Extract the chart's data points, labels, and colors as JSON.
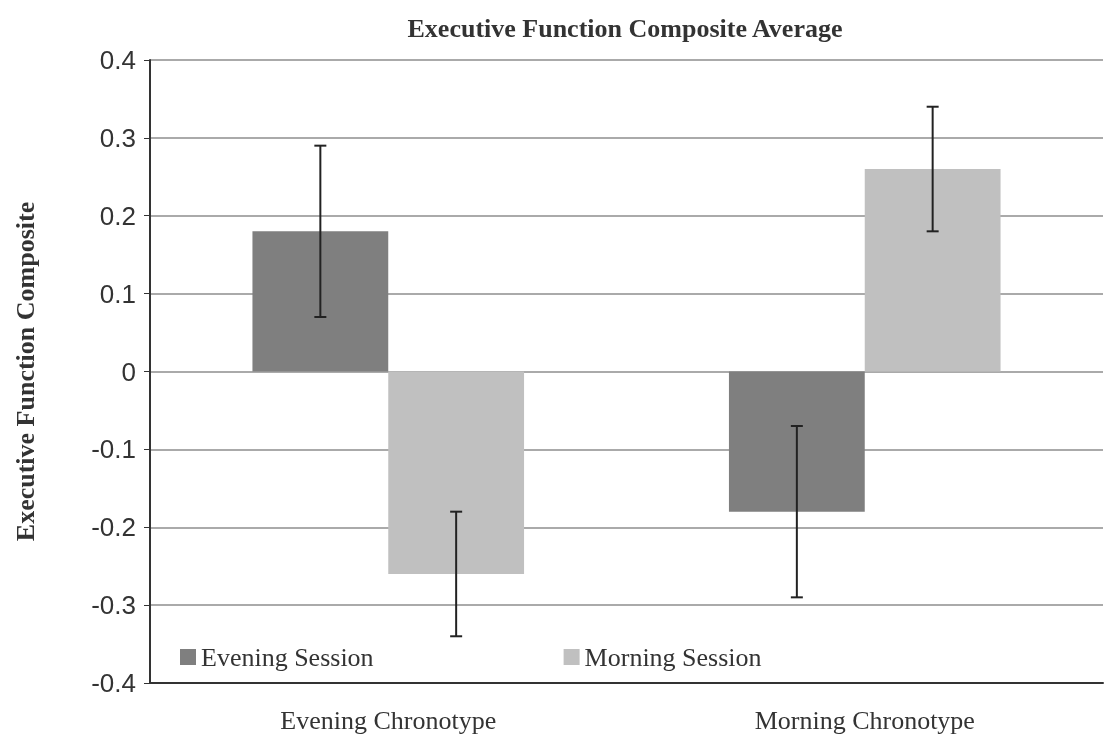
{
  "chart_data": {
    "type": "bar",
    "title": "Executive Function Composite Average",
    "ylabel": "Executive Function Composite",
    "categories": [
      "Evening Chronotype",
      "Morning Chronotype"
    ],
    "series": [
      {
        "name": "Evening Session",
        "color": "#7f7f7f",
        "values": [
          0.18,
          -0.18
        ],
        "errors": [
          0.11,
          0.11
        ]
      },
      {
        "name": "Morning Session",
        "color": "#c0c0c0",
        "values": [
          -0.26,
          0.26
        ],
        "errors": [
          0.08,
          0.08
        ]
      }
    ],
    "ylim": [
      -0.4,
      0.4
    ],
    "yticks": [
      -0.4,
      -0.3,
      -0.2,
      -0.1,
      0,
      0.1,
      0.2,
      0.3,
      0.4
    ],
    "grid": "y",
    "legend": "bottom left"
  }
}
